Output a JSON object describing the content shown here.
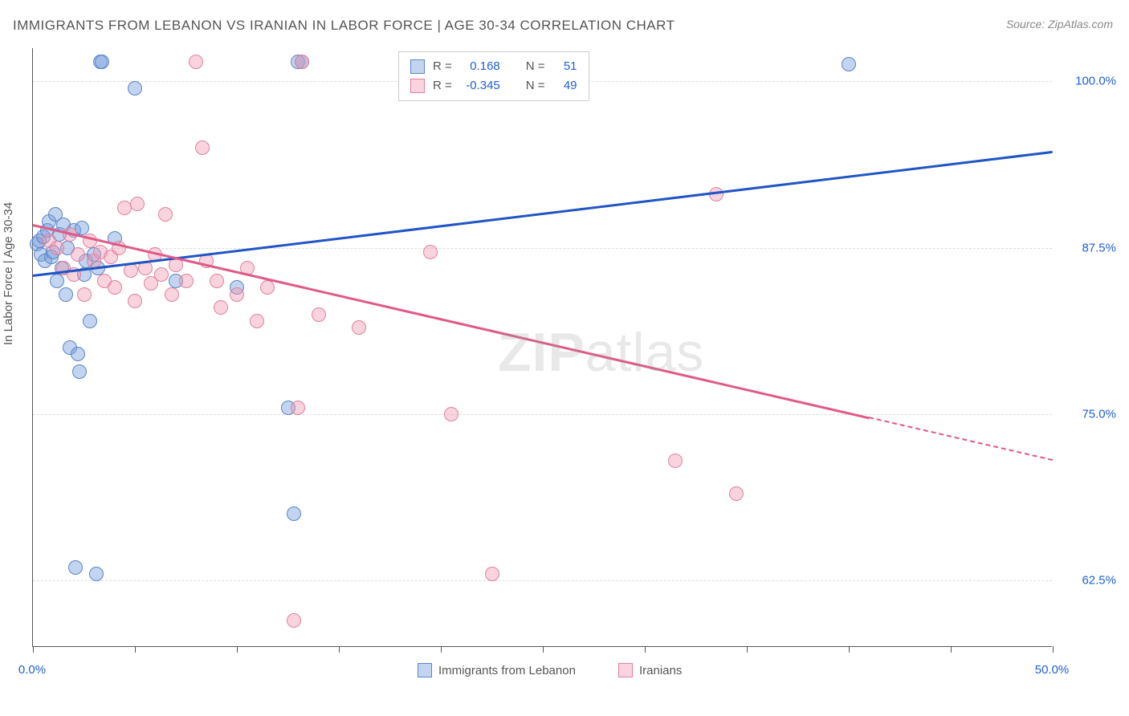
{
  "title": "IMMIGRANTS FROM LEBANON VS IRANIAN IN LABOR FORCE | AGE 30-34 CORRELATION CHART",
  "source": "Source: ZipAtlas.com",
  "y_axis_label": "In Labor Force | Age 30-34",
  "watermark_bold": "ZIP",
  "watermark_rest": "atlas",
  "chart": {
    "type": "scatter",
    "xlim": [
      0,
      50
    ],
    "ylim": [
      57.5,
      102.5
    ],
    "x_ticks": [
      0,
      5,
      10,
      15,
      20,
      25,
      30,
      35,
      40,
      45,
      50
    ],
    "x_tick_labels": {
      "0": "0.0%",
      "50": "50.0%"
    },
    "y_gridlines": [
      62.5,
      75.0,
      87.5,
      100.0
    ],
    "y_tick_labels": [
      "62.5%",
      "75.0%",
      "87.5%",
      "100.0%"
    ],
    "background_color": "#ffffff",
    "grid_color": "#dddddd",
    "axis_color": "#555555",
    "label_fontsize": 15,
    "title_fontsize": 17,
    "tick_color": "#2060d0"
  },
  "series": [
    {
      "name": "Immigrants from Lebanon",
      "fill": "rgba(120,160,220,0.45)",
      "stroke": "#5a85c8",
      "line_color": "#2055c4",
      "R": "0.168",
      "N": "51",
      "trend": {
        "x1": 0,
        "y1": 85.5,
        "x2": 50,
        "y2": 94.8
      },
      "points": [
        [
          0.2,
          87.8
        ],
        [
          0.3,
          88.0
        ],
        [
          0.4,
          87.0
        ],
        [
          0.5,
          88.3
        ],
        [
          0.6,
          86.5
        ],
        [
          0.7,
          88.8
        ],
        [
          0.8,
          89.5
        ],
        [
          0.9,
          86.8
        ],
        [
          1.0,
          87.2
        ],
        [
          1.1,
          90.0
        ],
        [
          1.2,
          85.0
        ],
        [
          1.3,
          88.5
        ],
        [
          1.4,
          86.0
        ],
        [
          1.5,
          89.2
        ],
        [
          1.6,
          84.0
        ],
        [
          1.7,
          87.5
        ],
        [
          1.8,
          80.0
        ],
        [
          2.0,
          88.8
        ],
        [
          2.2,
          79.5
        ],
        [
          2.3,
          78.2
        ],
        [
          2.4,
          89.0
        ],
        [
          2.5,
          85.5
        ],
        [
          2.6,
          86.5
        ],
        [
          2.8,
          82.0
        ],
        [
          3.0,
          87.0
        ],
        [
          3.2,
          86.0
        ],
        [
          3.3,
          101.5
        ],
        [
          3.4,
          101.5
        ],
        [
          4.0,
          88.2
        ],
        [
          5.0,
          99.5
        ],
        [
          2.1,
          63.5
        ],
        [
          3.1,
          63.0
        ],
        [
          7.0,
          85.0
        ],
        [
          10.0,
          84.5
        ],
        [
          12.5,
          75.5
        ],
        [
          12.8,
          67.5
        ],
        [
          13.0,
          101.5
        ],
        [
          13.2,
          101.5
        ],
        [
          40.0,
          101.3
        ]
      ]
    },
    {
      "name": "Iranians",
      "fill": "rgba(240,150,175,0.42)",
      "stroke": "#e081a0",
      "line_color": "#e05a88",
      "R": "-0.345",
      "N": "49",
      "trend": {
        "x1": 0,
        "y1": 89.3,
        "x2": 41,
        "y2": 74.8
      },
      "trend_dashed": {
        "x1": 41,
        "y1": 74.8,
        "x2": 50,
        "y2": 71.6
      },
      "points": [
        [
          0.8,
          88.0
        ],
        [
          1.2,
          87.5
        ],
        [
          1.5,
          86.0
        ],
        [
          1.8,
          88.5
        ],
        [
          2.0,
          85.5
        ],
        [
          2.2,
          87.0
        ],
        [
          2.5,
          84.0
        ],
        [
          2.8,
          88.0
        ],
        [
          3.0,
          86.5
        ],
        [
          3.3,
          87.2
        ],
        [
          3.5,
          85.0
        ],
        [
          3.8,
          86.8
        ],
        [
          4.0,
          84.5
        ],
        [
          4.2,
          87.5
        ],
        [
          4.5,
          90.5
        ],
        [
          4.8,
          85.8
        ],
        [
          5.0,
          83.5
        ],
        [
          5.1,
          90.8
        ],
        [
          5.5,
          86.0
        ],
        [
          5.8,
          84.8
        ],
        [
          6.0,
          87.0
        ],
        [
          6.3,
          85.5
        ],
        [
          6.5,
          90.0
        ],
        [
          6.8,
          84.0
        ],
        [
          7.0,
          86.2
        ],
        [
          7.5,
          85.0
        ],
        [
          8.0,
          101.5
        ],
        [
          8.3,
          95.0
        ],
        [
          8.5,
          86.5
        ],
        [
          9.0,
          85.0
        ],
        [
          9.2,
          83.0
        ],
        [
          10.0,
          84.0
        ],
        [
          10.5,
          86.0
        ],
        [
          11.0,
          82.0
        ],
        [
          11.5,
          84.5
        ],
        [
          13.0,
          75.5
        ],
        [
          13.2,
          101.5
        ],
        [
          12.8,
          59.5
        ],
        [
          14.0,
          82.5
        ],
        [
          16.0,
          81.5
        ],
        [
          19.5,
          87.2
        ],
        [
          20.5,
          75.0
        ],
        [
          22.5,
          63.0
        ],
        [
          31.5,
          71.5
        ],
        [
          33.5,
          91.5
        ],
        [
          34.5,
          69.0
        ]
      ]
    }
  ],
  "stats_box": {
    "R_label": "R =",
    "N_label": "N ="
  }
}
